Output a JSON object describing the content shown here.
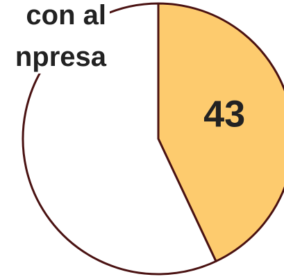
{
  "chart_data": {
    "type": "pie",
    "title_lines": [
      "con al",
      "npresa"
    ],
    "values": [
      43,
      57
    ],
    "colors": [
      "#fdcb6e",
      "#ffffff"
    ],
    "stroke": "#4a1212",
    "start_angle": 0,
    "direction": "clockwise"
  }
}
